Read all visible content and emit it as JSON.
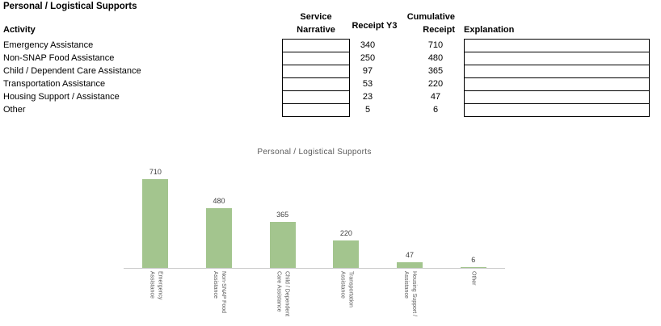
{
  "doc": {
    "title": "Personal / Logistical Supports"
  },
  "table": {
    "headers": {
      "activity": "Activity",
      "service_narrative": [
        "Service",
        "Narrative"
      ],
      "receipt_y3": "Receipt Y3",
      "cumulative": [
        "Cumulative",
        "Receipt"
      ],
      "explanation": "Explanation"
    },
    "rows": [
      {
        "activity": "Emergency Assistance",
        "service_narrative": "",
        "receipt_y3": "340",
        "cumulative": "710",
        "explanation": ""
      },
      {
        "activity": "Non-SNAP Food Assistance",
        "service_narrative": "",
        "receipt_y3": "250",
        "cumulative": "480",
        "explanation": ""
      },
      {
        "activity": "Child / Dependent Care Assistance",
        "service_narrative": "",
        "receipt_y3": "97",
        "cumulative": "365",
        "explanation": ""
      },
      {
        "activity": "Transportation Assistance",
        "service_narrative": "",
        "receipt_y3": "53",
        "cumulative": "220",
        "explanation": ""
      },
      {
        "activity": "Housing Support / Assistance",
        "service_narrative": "",
        "receipt_y3": "23",
        "cumulative": "47",
        "explanation": ""
      },
      {
        "activity": "Other",
        "service_narrative": "",
        "receipt_y3": "5",
        "cumulative": "6",
        "explanation": ""
      }
    ]
  },
  "chart_data": {
    "type": "bar",
    "title": "Personal / Logistical Supports",
    "categories": [
      "Emergency Assistance",
      "Non-SNAP Food Assistance",
      "Child / Dependent Care Assistance",
      "Transportation Assistance",
      "Housing Support / Assistance",
      "Other"
    ],
    "category_label_lines": [
      [
        "Emergency",
        "Assistance"
      ],
      [
        "Non-SNAP Food",
        "Assistance"
      ],
      [
        "Child / Dependent",
        "Care Assistance"
      ],
      [
        "Transportation",
        "Assistance"
      ],
      [
        "Housing Support /",
        "Assistance"
      ],
      [
        "Other"
      ]
    ],
    "values": [
      710,
      480,
      365,
      220,
      47,
      6
    ],
    "data_labels": "outside-end",
    "category_labels_rotation": "vertical-top-to-bottom",
    "y_axis_visible": false,
    "grid": false,
    "legend": "none",
    "bar_color": "#A3C58E",
    "axis_line_color": "#C9C9C9",
    "data_label_color": "#404040",
    "chart_text_color": "#595959"
  }
}
